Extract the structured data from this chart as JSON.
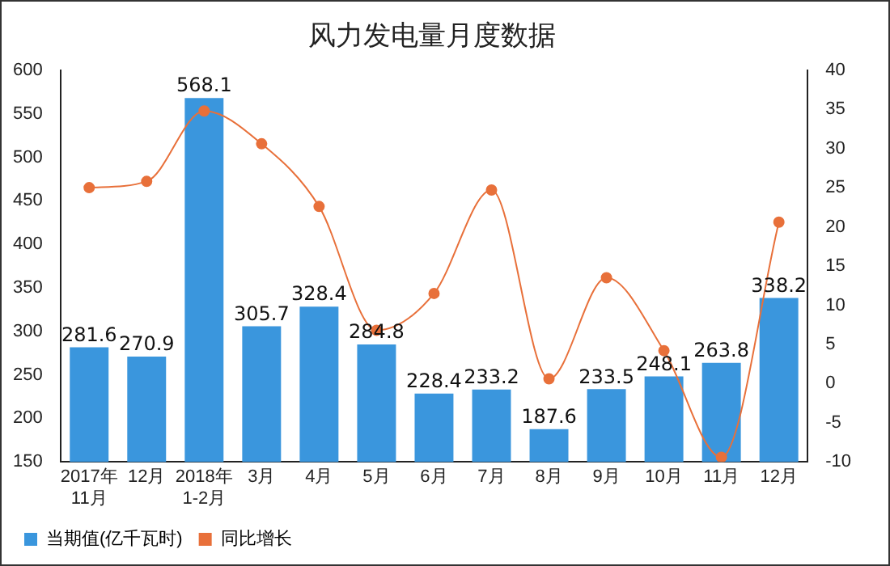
{
  "chart_data": {
    "type": "bar",
    "title": "风力发电量月度数据",
    "categories": [
      "2017年\n11月",
      "12月",
      "2018年\n1-2月",
      "3月",
      "4月",
      "5月",
      "6月",
      "7月",
      "8月",
      "9月",
      "10月",
      "11月",
      "12月"
    ],
    "series": [
      {
        "name": "当期值(亿千瓦时)",
        "color": "#3a96dd",
        "values": [
          281.6,
          270.9,
          568.1,
          305.7,
          328.4,
          284.8,
          228.4,
          233.2,
          187.6,
          233.5,
          248.1,
          263.8,
          338.2
        ],
        "value_labels": [
          "281.6",
          "270.9",
          "568.1",
          "305.7",
          "328.4",
          "284.8",
          "228.4",
          "233.2",
          "187.6",
          "233.5",
          "248.1",
          "263.8",
          "338.2"
        ]
      },
      {
        "name": "同比增长",
        "type": "line",
        "axis": "y2",
        "color": "#e8703a",
        "marker": "circle",
        "values": [
          25,
          25.8,
          34.8,
          30.6,
          22.6,
          6.8,
          11.5,
          24.7,
          0.6,
          13.5,
          4.2,
          -9.4,
          20.6
        ]
      }
    ],
    "ylim": [
      150,
      600
    ],
    "yticks": [
      150,
      200,
      250,
      300,
      350,
      400,
      450,
      500,
      550,
      600
    ],
    "y2lim": [
      -10,
      40
    ],
    "y2ticks": [
      -10,
      -5,
      0,
      5,
      10,
      15,
      20,
      25,
      30,
      35,
      40
    ],
    "grid": false,
    "legend": "bottom left"
  }
}
